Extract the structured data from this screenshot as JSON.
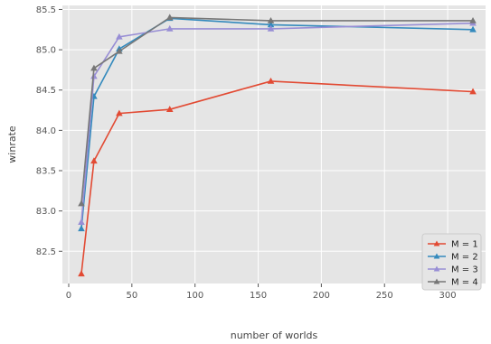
{
  "chart_data": {
    "type": "line",
    "title": "",
    "xlabel": "number of worlds",
    "ylabel": "winrate",
    "xlim": [
      -5,
      330
    ],
    "ylim": [
      82.1,
      85.55
    ],
    "xticks": [
      0,
      50,
      100,
      150,
      200,
      250,
      300
    ],
    "yticks": [
      82.5,
      83.0,
      83.5,
      84.0,
      84.5,
      85.0,
      85.5
    ],
    "ytick_labels": [
      "82.5",
      "83.0",
      "83.5",
      "84.0",
      "84.5",
      "85.0",
      "85.5"
    ],
    "x": [
      10,
      20,
      40,
      80,
      160,
      320
    ],
    "grid": true,
    "legend_position": "bottom-right",
    "marker": "triangle",
    "series": [
      {
        "name": "M = 1",
        "color": "#e24a33",
        "values": [
          82.22,
          83.62,
          84.21,
          84.26,
          84.61,
          84.48
        ]
      },
      {
        "name": "M = 2",
        "color": "#348abd",
        "values": [
          82.78,
          84.42,
          85.01,
          85.39,
          85.31,
          85.25
        ]
      },
      {
        "name": "M = 3",
        "color": "#988ed5",
        "values": [
          82.86,
          84.67,
          85.16,
          85.26,
          85.26,
          85.33
        ]
      },
      {
        "name": "M = 4",
        "color": "#777777",
        "values": [
          83.09,
          84.77,
          84.98,
          85.4,
          85.36,
          85.36
        ]
      }
    ]
  }
}
